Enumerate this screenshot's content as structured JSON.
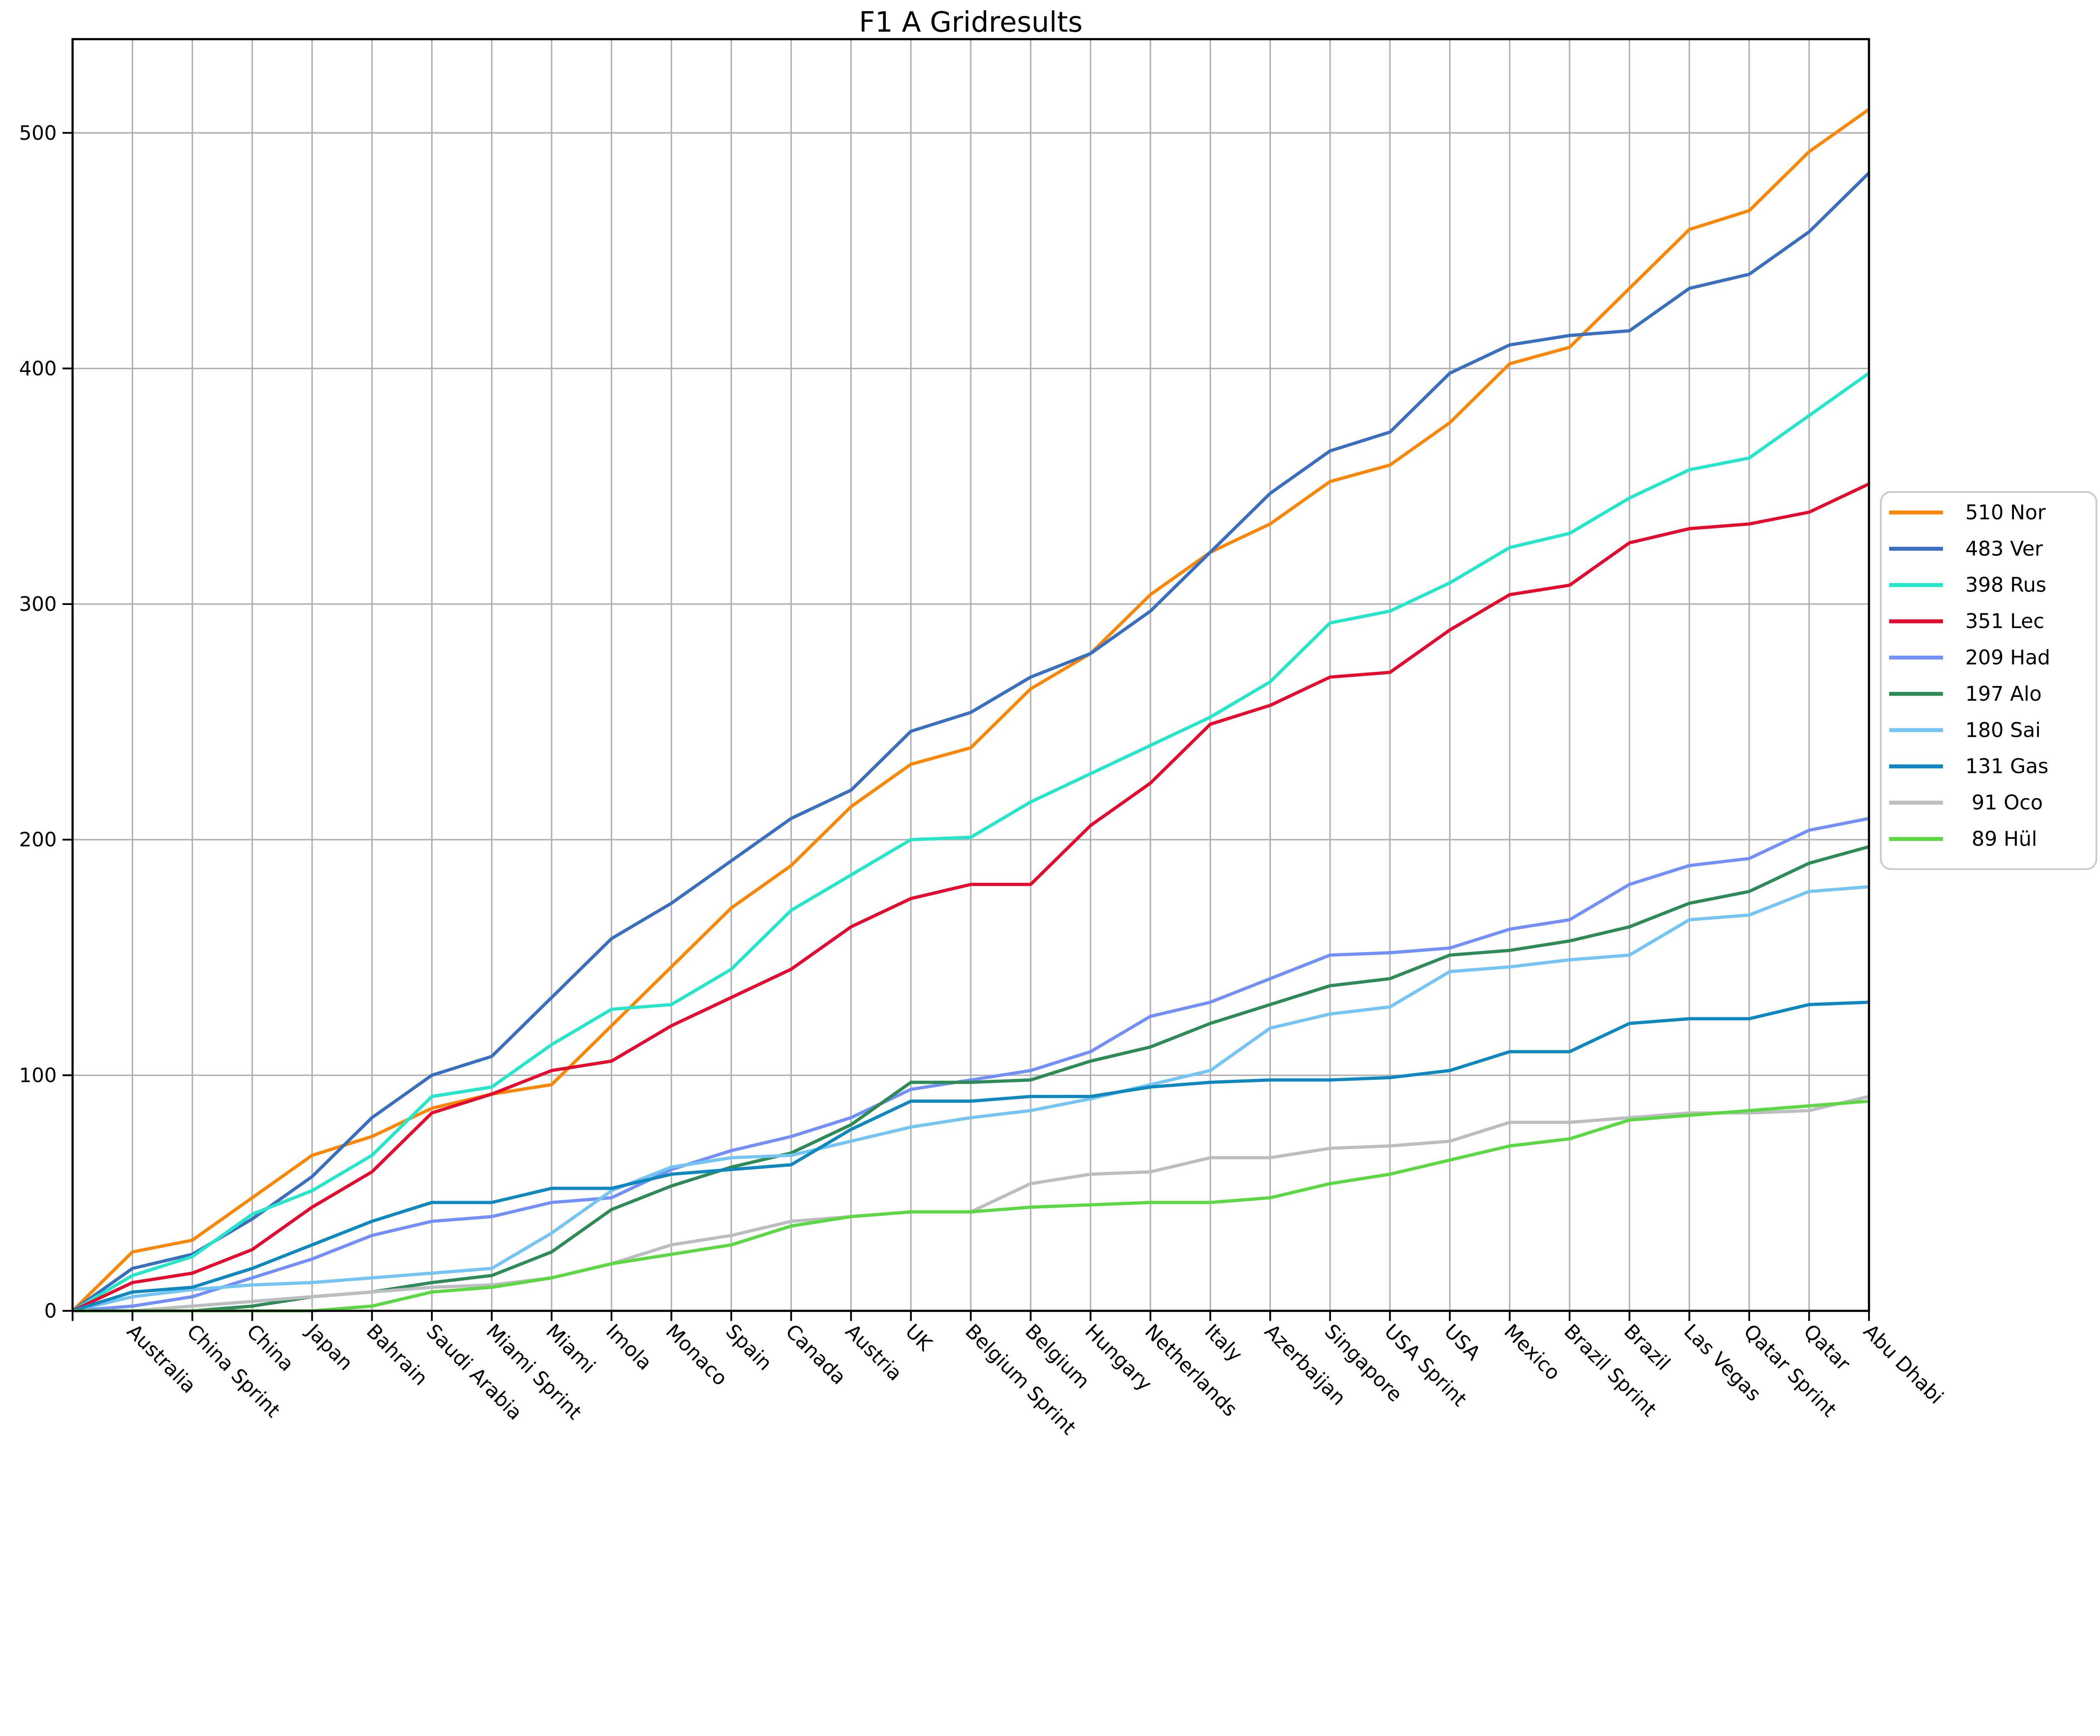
{
  "title": "F1 A Gridresults",
  "chart_data": {
    "type": "line",
    "title": "F1 A Gridresults",
    "xlabel": "",
    "ylabel": "",
    "grid": true,
    "legend_position": "right",
    "start_value": 0,
    "ylim": [
      0,
      540
    ],
    "y_ticks": [
      0,
      100,
      200,
      300,
      400,
      500
    ],
    "x_labels": [
      "Australia",
      "China Sprint",
      "China",
      "Japan",
      "Bahrain",
      "Saudi Arabia",
      "Miami Sprint",
      "Miami",
      "Imola",
      "Monaco",
      "Spain",
      "Canada",
      "Austria",
      "UK",
      "Belgium Sprint",
      "Belgium",
      "Hungary",
      "Netherlands",
      "Italy",
      "Azerbaijan",
      "Singapore",
      "USA Sprint",
      "USA",
      "Mexico",
      "Brazil Sprint",
      "Brazil",
      "Las Vegas",
      "Qatar Sprint",
      "Qatar",
      "Abu Dhabi"
    ],
    "series": [
      {
        "name": "Nor",
        "total": 510,
        "legend_label": "510 Nor",
        "color": "#fb8708",
        "values": [
          25,
          30,
          48,
          66,
          74,
          86,
          92,
          96,
          121,
          146,
          171,
          189,
          214,
          232,
          239,
          264,
          279,
          304,
          322,
          334,
          352,
          359,
          377,
          402,
          409,
          434,
          459,
          467,
          492,
          510
        ]
      },
      {
        "name": "Ver",
        "total": 483,
        "legend_label": "483 Ver",
        "color": "#3a6fbf",
        "values": [
          18,
          24,
          39,
          57,
          82,
          100,
          108,
          133,
          158,
          173,
          191,
          209,
          221,
          246,
          254,
          269,
          279,
          297,
          322,
          347,
          365,
          373,
          398,
          410,
          414,
          416,
          434,
          440,
          458,
          483
        ]
      },
      {
        "name": "Rus",
        "total": 398,
        "legend_label": "398 Rus",
        "color": "#25e6ca",
        "values": [
          15,
          23,
          41,
          51,
          66,
          91,
          95,
          113,
          128,
          130,
          145,
          170,
          185,
          200,
          201,
          216,
          228,
          240,
          252,
          267,
          292,
          297,
          309,
          324,
          330,
          345,
          357,
          362,
          380,
          398
        ]
      },
      {
        "name": "Lec",
        "total": 351,
        "legend_label": "351 Lec",
        "color": "#e30b2e",
        "values": [
          12,
          16,
          26,
          44,
          59,
          84,
          92,
          102,
          106,
          121,
          133,
          145,
          163,
          175,
          181,
          181,
          206,
          224,
          249,
          257,
          269,
          271,
          289,
          304,
          308,
          326,
          332,
          334,
          339,
          351
        ]
      },
      {
        "name": "Had",
        "total": 209,
        "legend_label": "209 Had",
        "color": "#7290f7",
        "values": [
          2,
          6,
          14,
          22,
          32,
          38,
          40,
          46,
          48,
          60,
          68,
          74,
          82,
          94,
          98,
          102,
          110,
          125,
          131,
          141,
          151,
          152,
          154,
          162,
          166,
          181,
          189,
          192,
          204,
          209
        ]
      },
      {
        "name": "Alo",
        "total": 197,
        "legend_label": "197 Alo",
        "color": "#2e8b57",
        "values": [
          0,
          0,
          2,
          6,
          8,
          12,
          15,
          25,
          43,
          53,
          61,
          67,
          79,
          97,
          97,
          98,
          106,
          112,
          122,
          130,
          138,
          141,
          151,
          153,
          157,
          163,
          173,
          178,
          190,
          197
        ]
      },
      {
        "name": "Sai",
        "total": 180,
        "legend_label": "180 Sai",
        "color": "#74c4f4",
        "values": [
          6,
          9,
          11,
          12,
          14,
          16,
          18,
          33,
          51,
          61,
          65,
          66,
          72,
          78,
          82,
          85,
          90,
          96,
          102,
          120,
          126,
          129,
          144,
          146,
          149,
          151,
          166,
          168,
          178,
          180
        ]
      },
      {
        "name": "Gas",
        "total": 131,
        "legend_label": "131 Gas",
        "color": "#0f87bf",
        "values": [
          8,
          10,
          18,
          28,
          38,
          46,
          46,
          52,
          52,
          58,
          60,
          62,
          77,
          89,
          89,
          91,
          91,
          95,
          97,
          98,
          98,
          99,
          102,
          110,
          110,
          122,
          124,
          124,
          130,
          131
        ]
      },
      {
        "name": "Oco",
        "total": 91,
        "legend_label": " 91 Oco",
        "color": "#bbbdc0",
        "values": [
          0,
          2,
          4,
          6,
          8,
          10,
          11,
          14,
          20,
          28,
          32,
          38,
          40,
          42,
          42,
          54,
          58,
          59,
          65,
          65,
          69,
          70,
          72,
          80,
          80,
          82,
          84,
          84,
          85,
          91
        ]
      },
      {
        "name": "Hül",
        "total": 89,
        "legend_label": " 89 Hül",
        "color": "#5cd845",
        "values": [
          0,
          0,
          0,
          0,
          2,
          8,
          10,
          14,
          20,
          24,
          28,
          36,
          40,
          42,
          42,
          44,
          45,
          46,
          46,
          48,
          54,
          58,
          64,
          70,
          73,
          81,
          83,
          85,
          87,
          89
        ]
      }
    ]
  }
}
